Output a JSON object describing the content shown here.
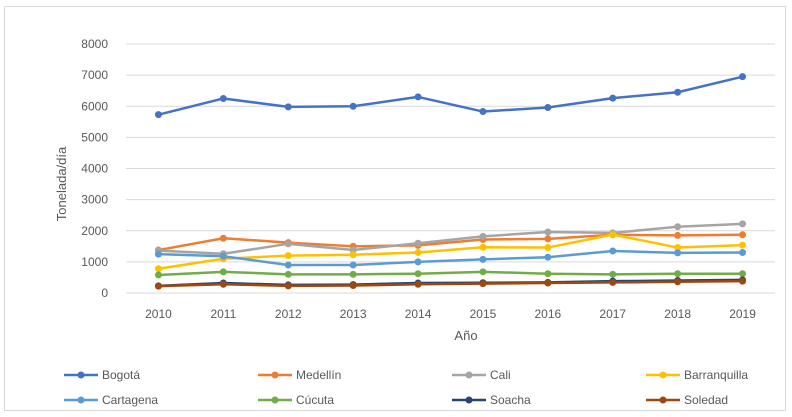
{
  "chart_data": {
    "type": "line",
    "title": "",
    "xlabel": "Año",
    "ylabel": "Tonelada/día",
    "categories": [
      "2010",
      "2011",
      "2012",
      "2013",
      "2014",
      "2015",
      "2016",
      "2017",
      "2018",
      "2019"
    ],
    "ylim": [
      0,
      8000
    ],
    "yticks": [
      "0",
      "1000",
      "2000",
      "3000",
      "4000",
      "5000",
      "6000",
      "7000",
      "8000"
    ],
    "grid": "horizontal",
    "legend_position": "bottom",
    "series": [
      {
        "name": "Bogotá",
        "color": "#4472c4",
        "values": [
          5730,
          6250,
          5980,
          6000,
          6300,
          5830,
          5960,
          6260,
          6450,
          6950
        ]
      },
      {
        "name": "Medellín",
        "color": "#ed7d31",
        "values": [
          1380,
          1760,
          1620,
          1500,
          1530,
          1720,
          1740,
          1870,
          1850,
          1870
        ]
      },
      {
        "name": "Cali",
        "color": "#a5a5a5",
        "values": [
          1360,
          1260,
          1580,
          1380,
          1600,
          1820,
          1960,
          1930,
          2130,
          2220
        ]
      },
      {
        "name": "Barranquilla",
        "color": "#ffc000",
        "values": [
          780,
          1100,
          1200,
          1230,
          1300,
          1470,
          1460,
          1880,
          1460,
          1540
        ]
      },
      {
        "name": "Cartagena",
        "color": "#5b9bd5",
        "values": [
          1250,
          1180,
          900,
          900,
          1000,
          1080,
          1150,
          1350,
          1290,
          1300
        ]
      },
      {
        "name": "Cúcuta",
        "color": "#70ad47",
        "values": [
          580,
          680,
          600,
          600,
          620,
          680,
          620,
          600,
          620,
          620
        ]
      },
      {
        "name": "Soacha",
        "color": "#264478",
        "values": [
          230,
          320,
          260,
          270,
          320,
          330,
          340,
          380,
          400,
          420
        ]
      },
      {
        "name": "Soledad",
        "color": "#9e480e",
        "values": [
          220,
          280,
          230,
          240,
          280,
          300,
          320,
          340,
          360,
          380
        ]
      }
    ]
  }
}
